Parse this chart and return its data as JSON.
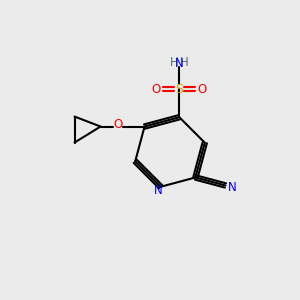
{
  "bg_color": "#ebebeb",
  "atom_colors": {
    "C": "#000000",
    "N": "#0000ff",
    "O": "#ff0000",
    "S": "#ccaa00",
    "H": "#507070"
  },
  "bond_color": "#000000",
  "fig_width": 3.0,
  "fig_height": 3.0,
  "dpi": 100
}
